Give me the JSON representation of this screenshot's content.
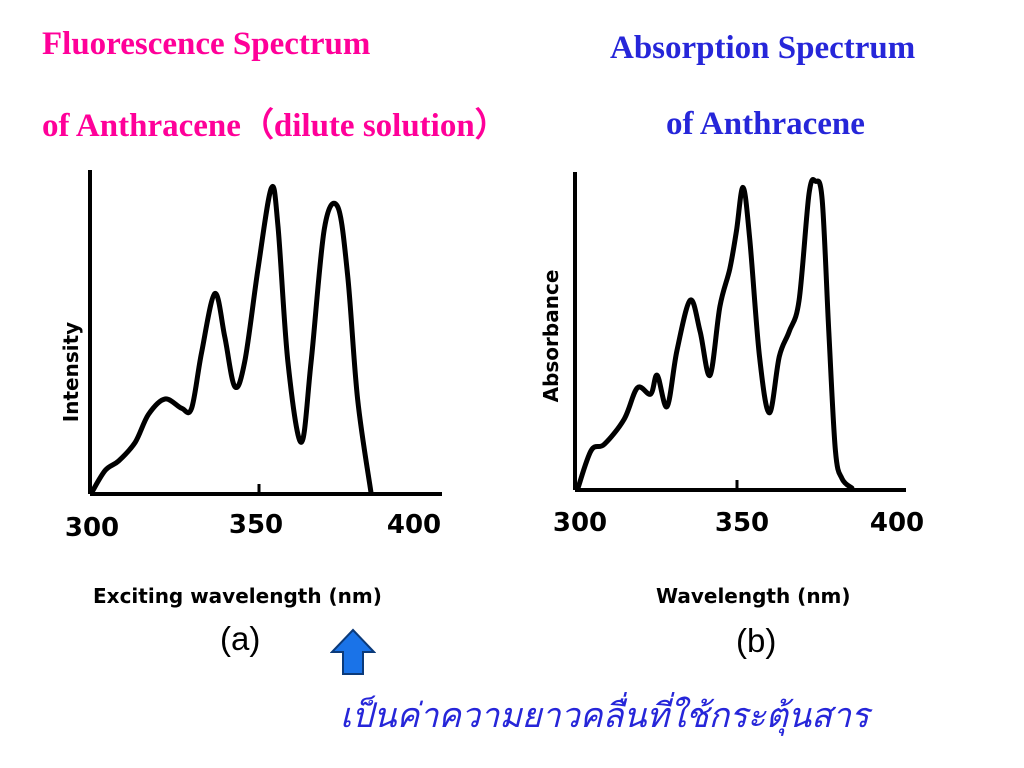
{
  "titles": {
    "left_line1": "Fluorescence Spectrum",
    "left_line2": "of Anthracene（dilute solution）",
    "right_line1": "Absorption Spectrum",
    "right_line2": "of Anthracene"
  },
  "panel_labels": {
    "a": "(a)",
    "b": "(b)"
  },
  "caption": "เป็นค่าความยาวคลื่นที่ใช้กระตุ้นสาร",
  "colors": {
    "left_title": "#ff0099",
    "right_title": "#2626d9",
    "caption": "#2626d9",
    "arrow": "#1a73e8"
  },
  "icons": {
    "arrow": "up-arrow-icon"
  },
  "chart_data": [
    {
      "type": "line",
      "ylabel": "Intensity",
      "xlabel": "Exciting wavelength (nm)",
      "x_ticks": [
        "300",
        "350",
        "400"
      ],
      "xlim": [
        300,
        400
      ],
      "ylim": [
        0,
        100
      ],
      "grid": false,
      "series": [
        {
          "x": [
            300,
            304,
            308,
            313,
            317,
            322,
            327,
            330,
            333,
            337,
            340,
            343,
            346,
            350,
            354,
            356,
            359,
            363,
            366,
            370,
            374,
            377,
            380,
            384
          ],
          "y": [
            0,
            7,
            10,
            16,
            25,
            30,
            27,
            27,
            45,
            64,
            50,
            34,
            42,
            72,
            98,
            86,
            42,
            16,
            42,
            85,
            92,
            70,
            30,
            0
          ]
        }
      ]
    },
    {
      "type": "line",
      "ylabel": "Absorbance",
      "xlabel": "Wavelength (nm)",
      "x_ticks": [
        "300",
        "350",
        "400"
      ],
      "xlim": [
        300,
        400
      ],
      "ylim": [
        0,
        100
      ],
      "grid": false,
      "series": [
        {
          "x": [
            300,
            304,
            308,
            314,
            318,
            322,
            324,
            327,
            330,
            334,
            337,
            340,
            343,
            346,
            348,
            350,
            352,
            355,
            358,
            361,
            364,
            367,
            370,
            372,
            374,
            376,
            378,
            380,
            383
          ],
          "y": [
            0,
            12,
            14,
            22,
            32,
            30,
            36,
            26,
            44,
            60,
            50,
            36,
            58,
            70,
            82,
            96,
            80,
            42,
            24,
            42,
            50,
            60,
            94,
            98,
            92,
            50,
            12,
            3,
            0
          ]
        }
      ]
    }
  ]
}
